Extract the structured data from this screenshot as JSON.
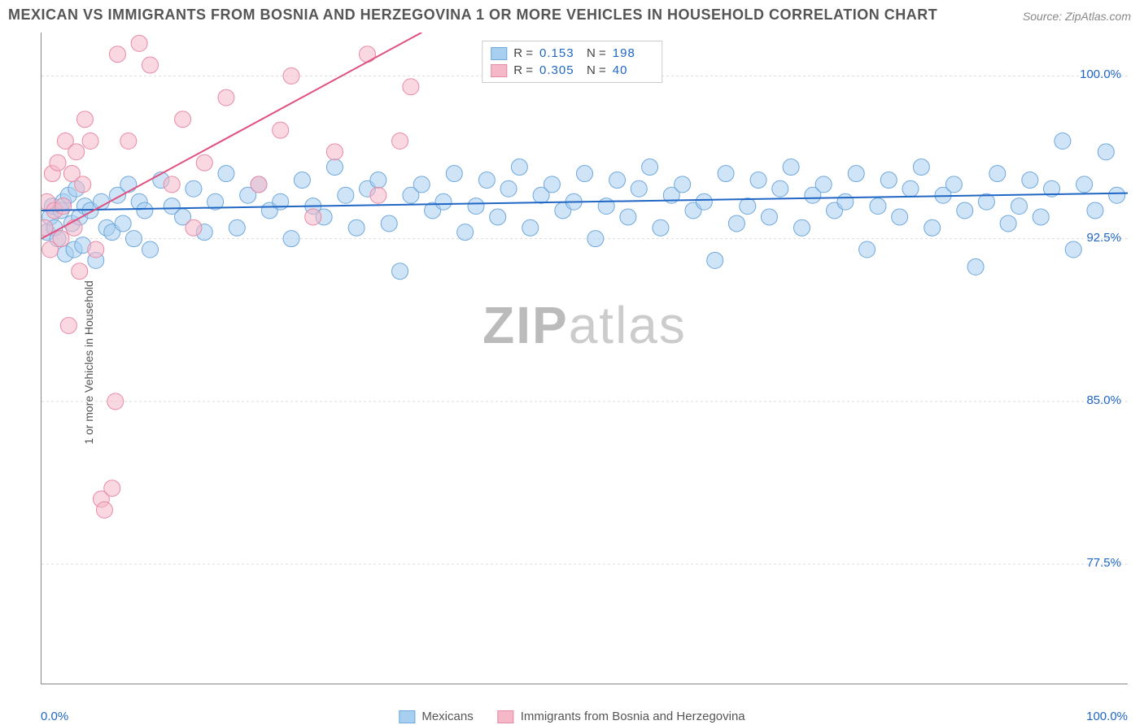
{
  "title": "MEXICAN VS IMMIGRANTS FROM BOSNIA AND HERZEGOVINA 1 OR MORE VEHICLES IN HOUSEHOLD CORRELATION CHART",
  "source": "Source: ZipAtlas.com",
  "ylabel": "1 or more Vehicles in Household",
  "watermark_bold": "ZIP",
  "watermark_light": "atlas",
  "chart": {
    "type": "scatter",
    "xlim": [
      0,
      100
    ],
    "ylim": [
      72,
      102
    ],
    "x_ticks": [
      0,
      10,
      20,
      30,
      50,
      70,
      90,
      100
    ],
    "x_tick_labels_shown": {
      "0": "0.0%",
      "100": "100.0%"
    },
    "y_ticks": [
      77.5,
      85.0,
      92.5,
      100.0
    ],
    "y_tick_labels": [
      "77.5%",
      "85.0%",
      "92.5%",
      "100.0%"
    ],
    "grid_color": "#dddddd",
    "grid_dash": "3,3",
    "background": "#ffffff",
    "series": [
      {
        "name": "Mexicans",
        "color_fill": "#a8cef0",
        "color_stroke": "#6fa8dc",
        "fill_opacity": 0.55,
        "marker_radius": 10,
        "r_value": "0.153",
        "n_value": "198",
        "trend_line": {
          "x1": 0,
          "y1": 93.8,
          "x2": 100,
          "y2": 94.6,
          "color": "#2066c4",
          "width": 2
        },
        "points": [
          [
            0.5,
            92.8
          ],
          [
            0.8,
            93.5
          ],
          [
            1.0,
            94.0
          ],
          [
            1.2,
            93.0
          ],
          [
            1.5,
            92.5
          ],
          [
            1.8,
            93.8
          ],
          [
            2.0,
            94.2
          ],
          [
            2.2,
            91.8
          ],
          [
            2.5,
            94.5
          ],
          [
            2.8,
            93.2
          ],
          [
            3.0,
            92.0
          ],
          [
            3.2,
            94.8
          ],
          [
            3.5,
            93.5
          ],
          [
            3.8,
            92.2
          ],
          [
            4.0,
            94.0
          ],
          [
            4.5,
            93.8
          ],
          [
            5.0,
            91.5
          ],
          [
            5.5,
            94.2
          ],
          [
            6.0,
            93.0
          ],
          [
            6.5,
            92.8
          ],
          [
            7.0,
            94.5
          ],
          [
            7.5,
            93.2
          ],
          [
            8.0,
            95.0
          ],
          [
            8.5,
            92.5
          ],
          [
            9.0,
            94.2
          ],
          [
            9.5,
            93.8
          ],
          [
            10,
            92.0
          ],
          [
            11,
            95.2
          ],
          [
            12,
            94.0
          ],
          [
            13,
            93.5
          ],
          [
            14,
            94.8
          ],
          [
            15,
            92.8
          ],
          [
            16,
            94.2
          ],
          [
            17,
            95.5
          ],
          [
            18,
            93.0
          ],
          [
            19,
            94.5
          ],
          [
            20,
            95.0
          ],
          [
            21,
            93.8
          ],
          [
            22,
            94.2
          ],
          [
            23,
            92.5
          ],
          [
            24,
            95.2
          ],
          [
            25,
            94.0
          ],
          [
            26,
            93.5
          ],
          [
            27,
            95.8
          ],
          [
            28,
            94.5
          ],
          [
            29,
            93.0
          ],
          [
            30,
            94.8
          ],
          [
            31,
            95.2
          ],
          [
            32,
            93.2
          ],
          [
            33,
            91.0
          ],
          [
            34,
            94.5
          ],
          [
            35,
            95.0
          ],
          [
            36,
            93.8
          ],
          [
            37,
            94.2
          ],
          [
            38,
            95.5
          ],
          [
            39,
            92.8
          ],
          [
            40,
            94.0
          ],
          [
            41,
            95.2
          ],
          [
            42,
            93.5
          ],
          [
            43,
            94.8
          ],
          [
            44,
            95.8
          ],
          [
            45,
            93.0
          ],
          [
            46,
            94.5
          ],
          [
            47,
            95.0
          ],
          [
            48,
            93.8
          ],
          [
            49,
            94.2
          ],
          [
            50,
            95.5
          ],
          [
            51,
            92.5
          ],
          [
            52,
            94.0
          ],
          [
            53,
            95.2
          ],
          [
            54,
            93.5
          ],
          [
            55,
            94.8
          ],
          [
            56,
            95.8
          ],
          [
            57,
            93.0
          ],
          [
            58,
            94.5
          ],
          [
            59,
            95.0
          ],
          [
            60,
            93.8
          ],
          [
            61,
            94.2
          ],
          [
            62,
            91.5
          ],
          [
            63,
            95.5
          ],
          [
            64,
            93.2
          ],
          [
            65,
            94.0
          ],
          [
            66,
            95.2
          ],
          [
            67,
            93.5
          ],
          [
            68,
            94.8
          ],
          [
            69,
            95.8
          ],
          [
            70,
            93.0
          ],
          [
            71,
            94.5
          ],
          [
            72,
            95.0
          ],
          [
            73,
            93.8
          ],
          [
            74,
            94.2
          ],
          [
            75,
            95.5
          ],
          [
            76,
            92.0
          ],
          [
            77,
            94.0
          ],
          [
            78,
            95.2
          ],
          [
            79,
            93.5
          ],
          [
            80,
            94.8
          ],
          [
            81,
            95.8
          ],
          [
            82,
            93.0
          ],
          [
            83,
            94.5
          ],
          [
            84,
            95.0
          ],
          [
            85,
            93.8
          ],
          [
            86,
            91.2
          ],
          [
            87,
            94.2
          ],
          [
            88,
            95.5
          ],
          [
            89,
            93.2
          ],
          [
            90,
            94.0
          ],
          [
            91,
            95.2
          ],
          [
            92,
            93.5
          ],
          [
            93,
            94.8
          ],
          [
            94,
            97.0
          ],
          [
            95,
            92.0
          ],
          [
            96,
            95.0
          ],
          [
            97,
            93.8
          ],
          [
            98,
            96.5
          ],
          [
            99,
            94.5
          ]
        ]
      },
      {
        "name": "Immigrants from Bosnia and Herzegovina",
        "color_fill": "#f5b8c8",
        "color_stroke": "#e88aa5",
        "fill_opacity": 0.55,
        "marker_radius": 10,
        "r_value": "0.305",
        "n_value": "40",
        "trend_line": {
          "x1": 0,
          "y1": 92.5,
          "x2": 35,
          "y2": 102,
          "color": "#e05080",
          "width": 2
        },
        "points": [
          [
            0.3,
            93.0
          ],
          [
            0.5,
            94.2
          ],
          [
            0.8,
            92.0
          ],
          [
            1.0,
            95.5
          ],
          [
            1.2,
            93.8
          ],
          [
            1.5,
            96.0
          ],
          [
            1.8,
            92.5
          ],
          [
            2.0,
            94.0
          ],
          [
            2.2,
            97.0
          ],
          [
            2.5,
            88.5
          ],
          [
            2.8,
            95.5
          ],
          [
            3.0,
            93.0
          ],
          [
            3.2,
            96.5
          ],
          [
            3.5,
            91.0
          ],
          [
            3.8,
            95.0
          ],
          [
            4.0,
            98.0
          ],
          [
            4.5,
            97.0
          ],
          [
            5.0,
            92.0
          ],
          [
            5.5,
            80.5
          ],
          [
            5.8,
            80.0
          ],
          [
            6.5,
            81.0
          ],
          [
            6.8,
            85.0
          ],
          [
            7.0,
            101.0
          ],
          [
            8.0,
            97.0
          ],
          [
            9.0,
            101.5
          ],
          [
            10,
            100.5
          ],
          [
            12,
            95.0
          ],
          [
            13,
            98.0
          ],
          [
            14,
            93.0
          ],
          [
            15,
            96.0
          ],
          [
            17,
            99.0
          ],
          [
            20,
            95.0
          ],
          [
            22,
            97.5
          ],
          [
            23,
            100.0
          ],
          [
            25,
            93.5
          ],
          [
            27,
            96.5
          ],
          [
            30,
            101.0
          ],
          [
            31,
            94.5
          ],
          [
            33,
            97.0
          ],
          [
            34,
            99.5
          ]
        ]
      }
    ]
  },
  "legend_bottom": [
    {
      "label": "Mexicans",
      "fill": "#a8cef0",
      "stroke": "#6fa8dc"
    },
    {
      "label": "Immigrants from Bosnia and Herzegovina",
      "fill": "#f5b8c8",
      "stroke": "#e88aa5"
    }
  ]
}
